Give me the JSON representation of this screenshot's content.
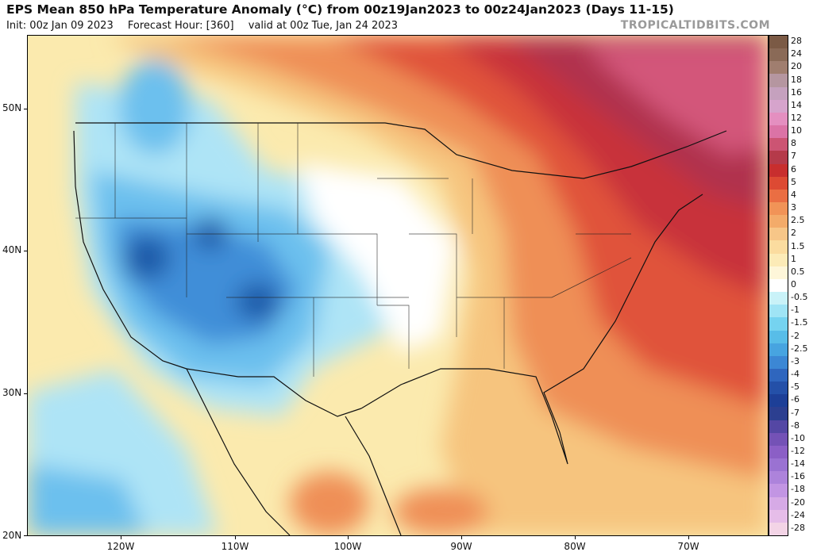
{
  "header": {
    "title": "EPS Mean 850 hPa Temperature Anomaly (°C) from 00z19Jan2023 to 00z24Jan2023 (Days 11-15)",
    "init": "Init: 00z Jan 09 2023",
    "forecast_hour": "Forecast Hour: [360]",
    "valid": "valid at 00z Tue, Jan 24 2023",
    "brand": "TROPICALTIDBITS.COM"
  },
  "map": {
    "lat_labels": [
      "50N",
      "40N",
      "30N",
      "20N"
    ],
    "lon_labels": [
      "120W",
      "110W",
      "100W",
      "90W",
      "80W",
      "70W"
    ],
    "colors": {
      "cold_core": "#1e5aa8",
      "cold": "#3f8ed8",
      "cool": "#6cc0ee",
      "cool_light": "#aee4f6",
      "neutral": "#ffffff",
      "warm_light": "#fbeaae",
      "warm": "#f6c47e",
      "warmer": "#ef8f56",
      "hot": "#e0533a",
      "hotter": "#c8303a",
      "hottest": "#b0334e",
      "extreme": "#d3577a"
    }
  },
  "colorbar": {
    "labels": [
      "28",
      "24",
      "20",
      "18",
      "16",
      "14",
      "12",
      "10",
      "8",
      "7",
      "6",
      "5",
      "4",
      "3",
      "2.5",
      "2",
      "1.5",
      "1",
      "0.5",
      "0",
      "-0.5",
      "-1",
      "-1.5",
      "-2",
      "-2.5",
      "-3",
      "-4",
      "-5",
      "-6",
      "-7",
      "-8",
      "-10",
      "-12",
      "-14",
      "-16",
      "-18",
      "-20",
      "-24",
      "-28"
    ],
    "colors": [
      "#7b5a45",
      "#8a6a57",
      "#a07e6f",
      "#b596a0",
      "#c5a1be",
      "#d6a4cc",
      "#e48fc0",
      "#db73a6",
      "#cc5473",
      "#b53a4a",
      "#c82e2e",
      "#dd4a33",
      "#ea6e43",
      "#f19357",
      "#f3ab6a",
      "#f7c688",
      "#fbdc9f",
      "#fcebb7",
      "#fef6d9",
      "#ffffff",
      "#c9f2f8",
      "#9fe4f5",
      "#75d3f0",
      "#58bde8",
      "#47a4e0",
      "#3c87d4",
      "#2f66be",
      "#2450a8",
      "#1d3f97",
      "#2c3f90",
      "#5447a4",
      "#7452b6",
      "#8b5fc6",
      "#9a72d2",
      "#ad83db",
      "#c295e3",
      "#d6aae6",
      "#e6bde9",
      "#f3d4e6"
    ]
  }
}
